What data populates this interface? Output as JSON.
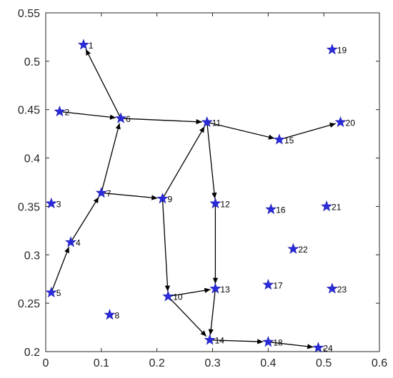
{
  "chart_data": {
    "type": "scatter",
    "title": "",
    "xlabel": "",
    "ylabel": "",
    "xlim": [
      0,
      0.6
    ],
    "ylim": [
      0.2,
      0.55
    ],
    "xticks": [
      "0",
      "0.1",
      "0.2",
      "0.3",
      "0.4",
      "0.5",
      "0.6"
    ],
    "yticks": [
      "0.2",
      "0.25",
      "0.3",
      "0.35",
      "0.4",
      "0.45",
      "0.5",
      "0.55"
    ],
    "grid": false,
    "marker_color": "#2b2bdc",
    "edge_color": "#000000",
    "nodes": [
      {
        "id": "1",
        "x": 0.068,
        "y": 0.517
      },
      {
        "id": "2",
        "x": 0.025,
        "y": 0.448
      },
      {
        "id": "3",
        "x": 0.01,
        "y": 0.353
      },
      {
        "id": "4",
        "x": 0.045,
        "y": 0.313
      },
      {
        "id": "5",
        "x": 0.01,
        "y": 0.261
      },
      {
        "id": "6",
        "x": 0.135,
        "y": 0.441
      },
      {
        "id": "7",
        "x": 0.1,
        "y": 0.364
      },
      {
        "id": "8",
        "x": 0.115,
        "y": 0.238
      },
      {
        "id": "9",
        "x": 0.21,
        "y": 0.358
      },
      {
        "id": "10",
        "x": 0.22,
        "y": 0.257
      },
      {
        "id": "11",
        "x": 0.29,
        "y": 0.437
      },
      {
        "id": "12",
        "x": 0.305,
        "y": 0.353
      },
      {
        "id": "13",
        "x": 0.305,
        "y": 0.265
      },
      {
        "id": "14",
        "x": 0.295,
        "y": 0.212
      },
      {
        "id": "15",
        "x": 0.42,
        "y": 0.419
      },
      {
        "id": "16",
        "x": 0.405,
        "y": 0.347
      },
      {
        "id": "17",
        "x": 0.4,
        "y": 0.269
      },
      {
        "id": "18",
        "x": 0.4,
        "y": 0.21
      },
      {
        "id": "19",
        "x": 0.515,
        "y": 0.512
      },
      {
        "id": "20",
        "x": 0.53,
        "y": 0.437
      },
      {
        "id": "21",
        "x": 0.505,
        "y": 0.35
      },
      {
        "id": "22",
        "x": 0.445,
        "y": 0.306
      },
      {
        "id": "23",
        "x": 0.515,
        "y": 0.265
      },
      {
        "id": "24",
        "x": 0.49,
        "y": 0.204
      }
    ],
    "edges": [
      {
        "from": "6",
        "to": "1"
      },
      {
        "from": "2",
        "to": "6"
      },
      {
        "from": "6",
        "to": "11"
      },
      {
        "from": "11",
        "to": "15"
      },
      {
        "from": "15",
        "to": "20"
      },
      {
        "from": "7",
        "to": "6"
      },
      {
        "from": "7",
        "to": "9"
      },
      {
        "from": "9",
        "to": "11"
      },
      {
        "from": "11",
        "to": "12"
      },
      {
        "from": "4",
        "to": "7"
      },
      {
        "from": "5",
        "to": "4"
      },
      {
        "from": "9",
        "to": "10"
      },
      {
        "from": "10",
        "to": "13"
      },
      {
        "from": "12",
        "to": "13"
      },
      {
        "from": "13",
        "to": "14"
      },
      {
        "from": "10",
        "to": "14"
      },
      {
        "from": "14",
        "to": "18"
      },
      {
        "from": "18",
        "to": "24"
      }
    ]
  }
}
